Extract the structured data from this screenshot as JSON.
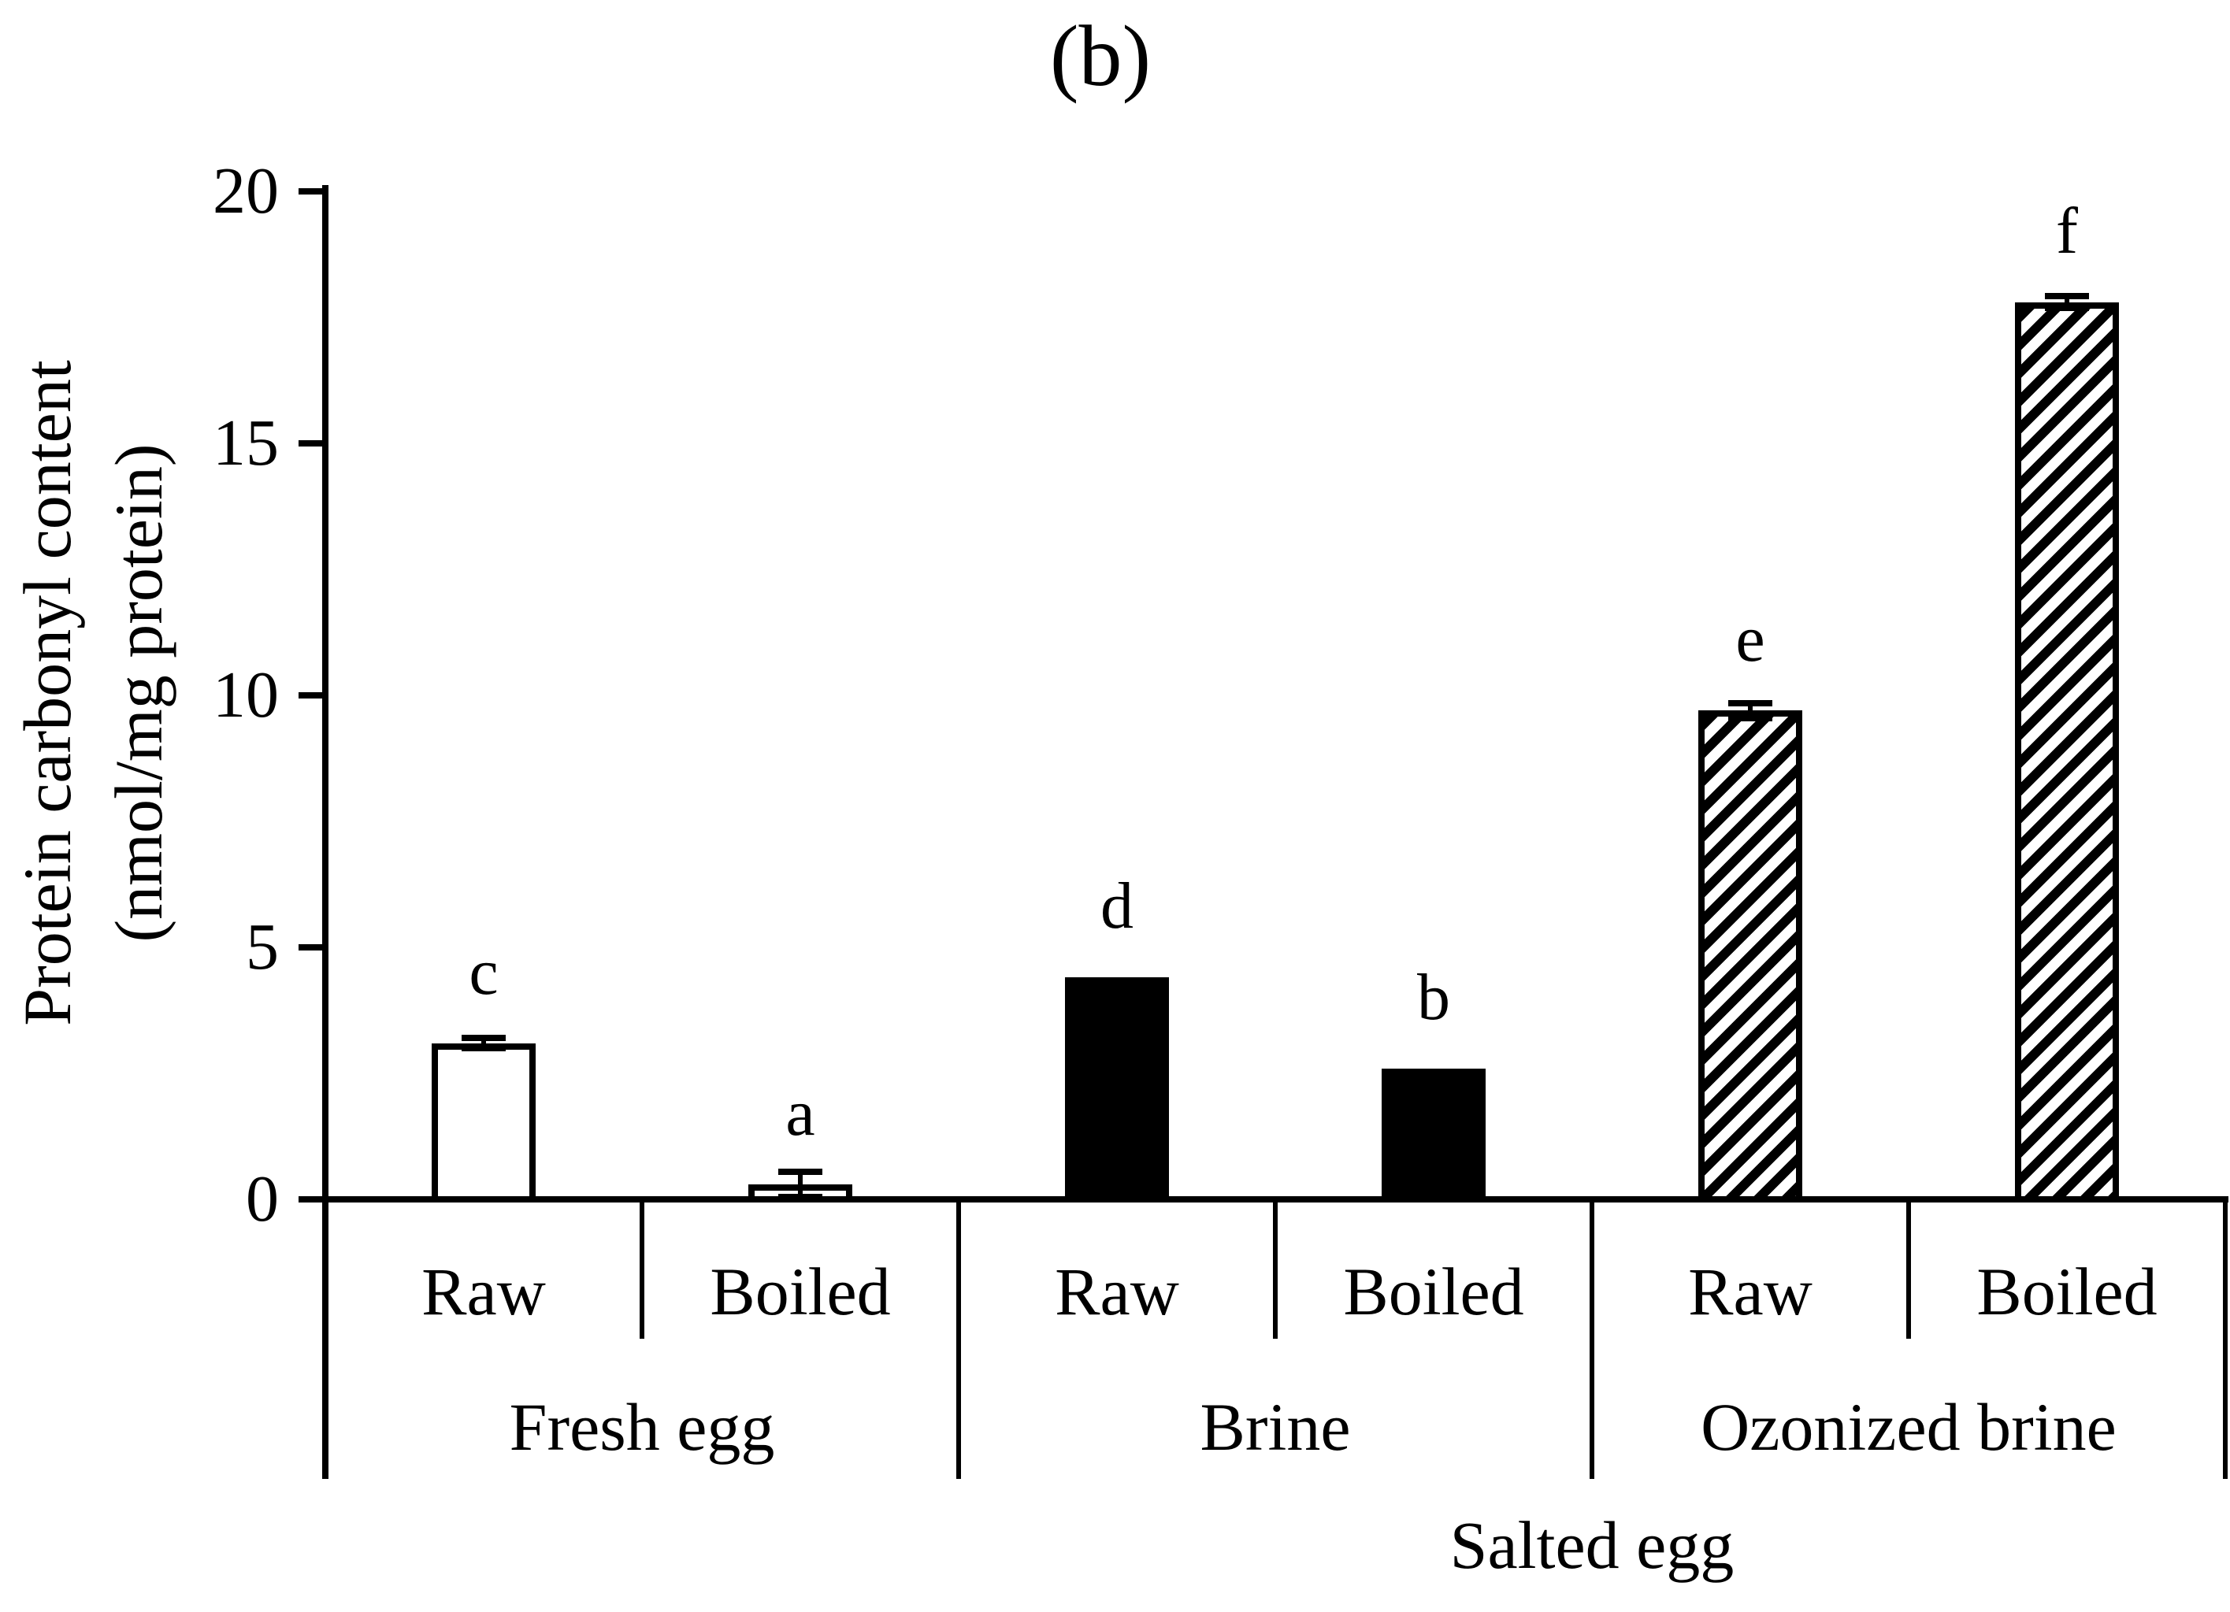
{
  "title": "(b)",
  "y_axis": {
    "label_line1": "Protein carbonyl content",
    "label_line2": "(nmol/mg protein)",
    "tick_values": [
      0,
      5,
      10,
      15,
      20
    ]
  },
  "x_axis": {
    "outer_label": "Salted egg"
  },
  "colors": {
    "ink": "#000000",
    "paper": "#ffffff"
  },
  "chart_data": {
    "type": "bar",
    "title": "(b)",
    "ylabel": "Protein carbonyl content (nmol/mg protein)",
    "ylim": [
      0,
      20
    ],
    "yticks": [
      0,
      5,
      10,
      15,
      20
    ],
    "grid": false,
    "legend": false,
    "outer_group_label": "Salted egg",
    "outer_group_spans_groups": [
      "Brine",
      "Ozonized brine"
    ],
    "groups": [
      {
        "label": "Fresh egg",
        "bars": [
          {
            "condition": "Raw",
            "value": 3.1,
            "error": 0.1,
            "letter": "c",
            "fill": "white"
          },
          {
            "condition": "Boiled",
            "value": 0.3,
            "error": 0.25,
            "letter": "a",
            "fill": "white"
          }
        ]
      },
      {
        "label": "Brine",
        "bars": [
          {
            "condition": "Raw",
            "value": 4.4,
            "error": 0,
            "letter": "d",
            "fill": "black"
          },
          {
            "condition": "Boiled",
            "value": 2.6,
            "error": 0,
            "letter": "b",
            "fill": "black"
          }
        ]
      },
      {
        "label": "Ozonized brine",
        "bars": [
          {
            "condition": "Raw",
            "value": 9.7,
            "error": 0.15,
            "letter": "e",
            "fill": "hatch"
          },
          {
            "condition": "Boiled",
            "value": 17.8,
            "error": 0.12,
            "letter": "f",
            "fill": "hatch"
          }
        ]
      }
    ]
  }
}
